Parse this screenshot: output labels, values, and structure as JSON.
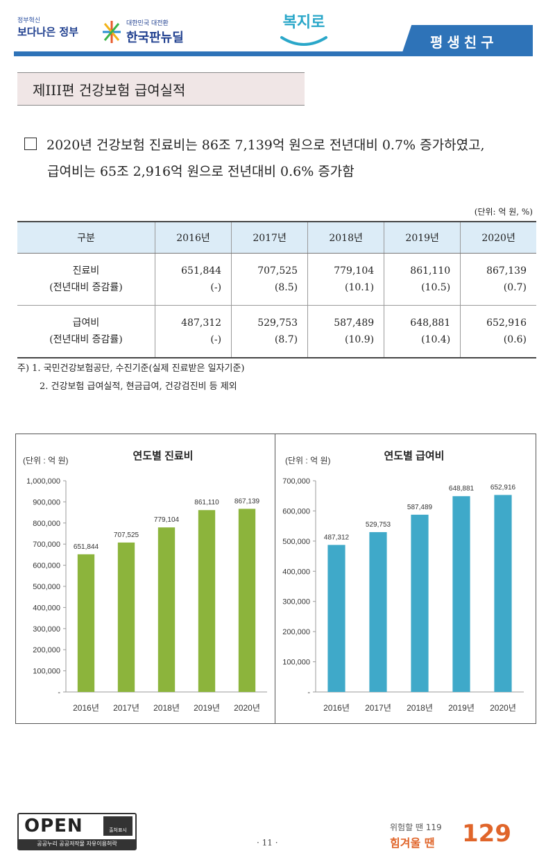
{
  "header": {
    "gov_logo_small": "정부혁신",
    "gov_logo_big": "보다나은 정부",
    "nd_logo_small": "대한민국 대전환",
    "nd_logo_big": "한국판뉴딜",
    "bokjiro": "복지로",
    "banner": "평생친구"
  },
  "section_title": "제III편 건강보험 급여실적",
  "summary": {
    "line1": "2020년 건강보험 진료비는 86조 7,139억 원으로 전년대비 0.7% 증가하였고,",
    "line2": "급여비는 65조 2,916억 원으로 전년대비 0.6% 증가함"
  },
  "table": {
    "unit": "(단위: 억 원, %)",
    "headers": [
      "구분",
      "2016년",
      "2017년",
      "2018년",
      "2019년",
      "2020년"
    ],
    "rows": [
      {
        "label1": "진료비",
        "label2": "(전년대비 증감률)",
        "values": [
          "651,844",
          "707,525",
          "779,104",
          "861,110",
          "867,139"
        ],
        "rates": [
          "(-)",
          "(8.5)",
          "(10.1)",
          "(10.5)",
          "(0.7)"
        ]
      },
      {
        "label1": "급여비",
        "label2": "(전년대비 증감률)",
        "values": [
          "487,312",
          "529,753",
          "587,489",
          "648,881",
          "652,916"
        ],
        "rates": [
          "(-)",
          "(8.7)",
          "(10.9)",
          "(10.4)",
          "(0.6)"
        ]
      }
    ]
  },
  "notes": {
    "n1": "주) 1. 국민건강보험공단, 수진기준(실제 진료받은 일자기준)",
    "n2": "2. 건강보험 급여실적, 현금급여, 건강검진비 등 제외"
  },
  "chart_data": [
    {
      "type": "bar",
      "title": "연도별 진료비",
      "unit_label": "(단위 : 억 원)",
      "categories": [
        "2016년",
        "2017년",
        "2018년",
        "2019년",
        "2020년"
      ],
      "values": [
        651844,
        707525,
        779104,
        861110,
        867139
      ],
      "data_labels": [
        "651,844",
        "707,525",
        "779,104",
        "861,110",
        "867,139"
      ],
      "ylim": [
        0,
        1000000
      ],
      "yticks": [
        0,
        100000,
        200000,
        300000,
        400000,
        500000,
        600000,
        700000,
        800000,
        900000,
        1000000
      ],
      "ytick_labels": [
        "-",
        "100,000",
        "200,000",
        "300,000",
        "400,000",
        "500,000",
        "600,000",
        "700,000",
        "800,000",
        "900,000",
        "1,000,000"
      ],
      "color": "#8cb43c",
      "grid": false,
      "legend": "none"
    },
    {
      "type": "bar",
      "title": "연도별 급여비",
      "unit_label": "(단위 : 억 원)",
      "categories": [
        "2016년",
        "2017년",
        "2018년",
        "2019년",
        "2020년"
      ],
      "values": [
        487312,
        529753,
        587489,
        648881,
        652916
      ],
      "data_labels": [
        "487,312",
        "529,753",
        "587,489",
        "648,881",
        "652,916"
      ],
      "ylim": [
        0,
        700000
      ],
      "yticks": [
        0,
        100000,
        200000,
        300000,
        400000,
        500000,
        600000,
        700000
      ],
      "ytick_labels": [
        "-",
        "100,000",
        "200,000",
        "300,000",
        "400,000",
        "500,000",
        "600,000",
        "700,000"
      ],
      "color": "#3fa9c9",
      "grid": false,
      "legend": "none"
    }
  ],
  "footer": {
    "open_text": "OPEN",
    "open_sub": "공공누리  공공저작물 자유이용허락",
    "open_badge": "출처표시",
    "page": "· 11 ·",
    "emerg_1": "위험할 땐 119",
    "emerg_2": "힘겨울 땐",
    "emerg_big": "129"
  }
}
